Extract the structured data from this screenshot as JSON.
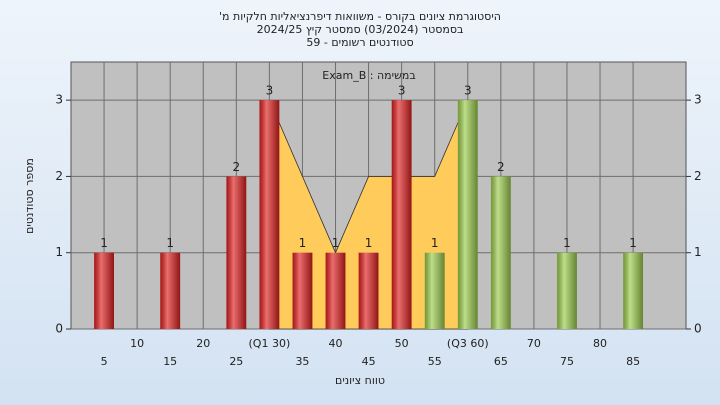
{
  "chart_data": {
    "type": "histogram",
    "title": [
      "היסטוגרמת ציונים בקורס - משוואות דיפרנציאליות חלקיות מ'",
      "בסמסטר (03/2024) סמסטר קיץ 2024/25",
      "סטודנטים רשומים - 59"
    ],
    "subtitle": "במשימה : Exam_B",
    "x_label": "טווח ציונים",
    "y_label": "מספר סטודנטים",
    "x": [
      5,
      15,
      25,
      30,
      35,
      40,
      45,
      50,
      55,
      60,
      65,
      75,
      85
    ],
    "values": [
      1,
      1,
      2,
      3,
      1,
      1,
      1,
      3,
      1,
      3,
      2,
      1,
      1
    ],
    "colors": [
      "#e02020",
      "#e02020",
      "#e02020",
      "#e02020",
      "#e02020",
      "#e02020",
      "#e02020",
      "#e02020",
      "#9ccc4c",
      "#9ccc4c",
      "#9ccc4c",
      "#9ccc4c",
      "#9ccc4c"
    ],
    "area": {
      "x": [
        30,
        40,
        45,
        55,
        60
      ],
      "values": [
        3,
        1,
        2,
        2,
        3
      ],
      "color": "#ffcc5c"
    },
    "xlim": [
      0,
      93
    ],
    "ylim": [
      0,
      3.5
    ],
    "xticks": [
      5,
      10,
      15,
      20,
      25,
      {
        "value": 30,
        "label": "(Q1 30)"
      },
      35,
      40,
      45,
      50,
      55,
      {
        "value": 60,
        "label": "(Q3 60)"
      },
      65,
      70,
      75,
      80,
      85
    ],
    "yticks": [
      0,
      1,
      2,
      3
    ],
    "grid": true
  }
}
